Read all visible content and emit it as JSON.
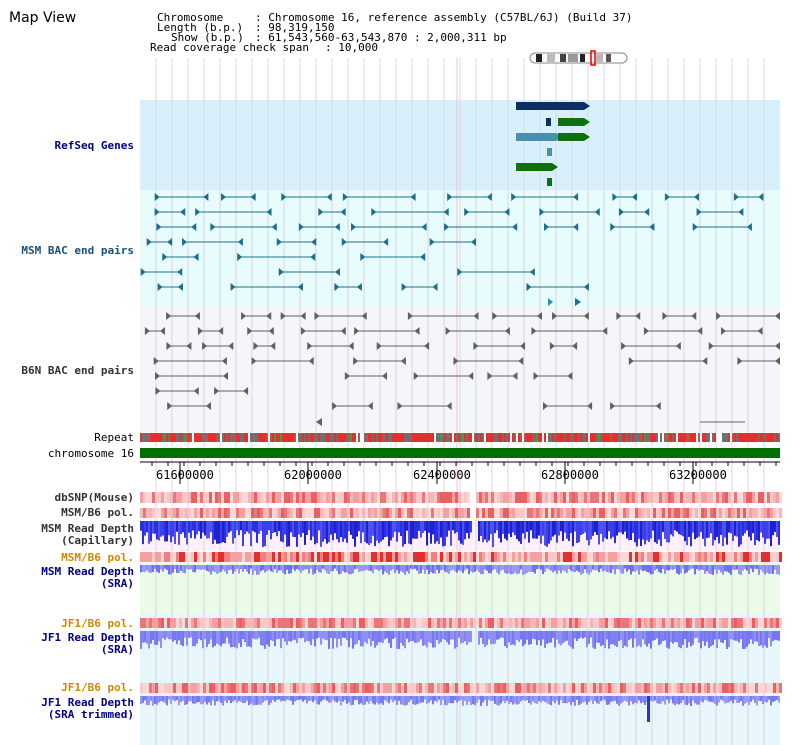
{
  "app": {
    "title": "Map View"
  },
  "header": {
    "chromosome_label": "Chromosome",
    "chromosome_value": ": Chromosome 16, reference assembly (C57BL/6J) (Build 37)",
    "length_label": "Length (b.p.)",
    "length_value": ": 98,319,150",
    "show_label": "Show (b.p.)",
    "show_value": ": 61,543,560-63,543,870 : 2,000,311 bp",
    "coverage_label": "Read coverage check span",
    "coverage_value": ": 10,000"
  },
  "tracks": {
    "refseq": "RefSeq Genes",
    "msm_bac": "MSM BAC end pairs",
    "b6n_bac": "B6N BAC end pairs",
    "repeat": "Repeat",
    "chromosome": "chromosome 16",
    "dbsnp": "dbSNP(Mouse)",
    "msm_pol1": "MSM/B6 pol.",
    "msm_depth_cap_1": "MSM Read Depth",
    "msm_depth_cap_2": "(Capillary)",
    "msm_pol2": "MSM/B6 pol.",
    "msm_depth_sra_1": "MSM Read Depth",
    "msm_depth_sra_2": "(SRA)",
    "jf1_pol1": "JF1/B6 pol.",
    "jf1_depth_1": "JF1 Read Depth",
    "jf1_depth_2": "(SRA)",
    "jf1_pol2": "JF1/B6 pol.",
    "jf1_depth_trim_1": "JF1 Read Depth",
    "jf1_depth_trim_2": "(SRA trimmed)"
  },
  "axis": {
    "ticks": [
      "61600000",
      "62000000",
      "62400000",
      "62800000",
      "63200000"
    ]
  },
  "colors": {
    "refseq_dark": "#0a2f60",
    "refseq_teal": "#4a8fb0",
    "refseq_green": "#107010",
    "msm_pair": "#1a6f8a",
    "b6n_pair": "#606060",
    "chrom_bar": "#007000",
    "depth_blue": "#2a30e0",
    "depth_light": "#8080f0"
  }
}
